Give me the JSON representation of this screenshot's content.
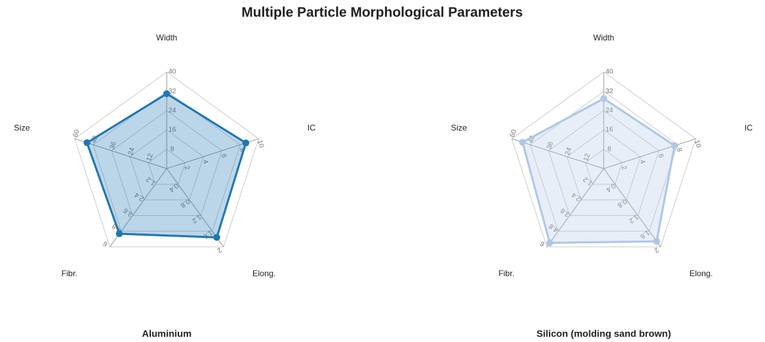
{
  "title": "Multiple Particle Morphological Parameters",
  "chart_data": [
    {
      "type": "radar",
      "title": "Aluminium",
      "axes": [
        {
          "name": "Width",
          "lim": [
            0,
            40
          ],
          "ticks": [
            8,
            16,
            24,
            32,
            40
          ]
        },
        {
          "name": "IC",
          "lim": [
            0,
            10
          ],
          "ticks": [
            2,
            4,
            6,
            8,
            10
          ]
        },
        {
          "name": "Elong.",
          "lim": [
            0,
            2
          ],
          "ticks": [
            0.4,
            0.8,
            1.2,
            1.6,
            2
          ]
        },
        {
          "name": "Fibr.",
          "lim": [
            0,
            6
          ],
          "ticks": [
            1.2,
            2.4,
            3.6,
            4.8,
            6
          ]
        },
        {
          "name": "Size",
          "lim": [
            0,
            60
          ],
          "ticks": [
            12,
            24,
            36,
            48,
            60
          ]
        }
      ],
      "grid": true,
      "series": [
        {
          "color": "#1f77b4",
          "values": [
            31,
            8.6,
            1.76,
            5.0,
            52
          ]
        }
      ]
    },
    {
      "type": "radar",
      "title": "Silicon (molding sand brown)",
      "axes": [
        {
          "name": "Width",
          "lim": [
            0,
            40
          ],
          "ticks": [
            8,
            16,
            24,
            32,
            40
          ]
        },
        {
          "name": "IC",
          "lim": [
            0,
            10
          ],
          "ticks": [
            2,
            4,
            6,
            8,
            10
          ]
        },
        {
          "name": "Elong.",
          "lim": [
            0,
            2
          ],
          "ticks": [
            0.4,
            0.8,
            1.2,
            1.6,
            2
          ]
        },
        {
          "name": "Fibr.",
          "lim": [
            0,
            6
          ],
          "ticks": [
            1.2,
            2.4,
            3.6,
            4.8,
            6
          ]
        },
        {
          "name": "Size",
          "lim": [
            0,
            60
          ],
          "ticks": [
            12,
            24,
            36,
            48,
            60
          ]
        }
      ],
      "grid": true,
      "series": [
        {
          "color": "#aec7e8",
          "values": [
            29,
            7.7,
            1.86,
            5.7,
            53
          ]
        }
      ]
    }
  ]
}
